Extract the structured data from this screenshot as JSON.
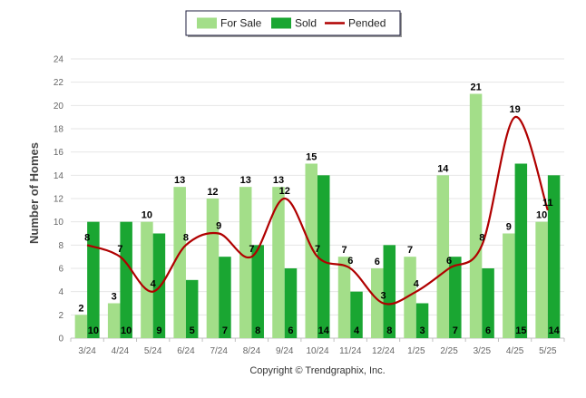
{
  "chart_data": {
    "type": "bar",
    "categories": [
      "3/24",
      "4/24",
      "5/24",
      "6/24",
      "7/24",
      "8/24",
      "9/24",
      "10/24",
      "11/24",
      "12/24",
      "1/25",
      "2/25",
      "3/25",
      "4/25",
      "5/25"
    ],
    "series": [
      {
        "name": "For Sale",
        "kind": "bar",
        "color": "#a3de89",
        "values": [
          2,
          3,
          10,
          13,
          12,
          13,
          13,
          15,
          7,
          6,
          7,
          14,
          21,
          9,
          10
        ]
      },
      {
        "name": "Sold",
        "kind": "bar",
        "color": "#1aa632",
        "values": [
          10,
          10,
          9,
          5,
          7,
          8,
          6,
          14,
          4,
          8,
          3,
          7,
          6,
          15,
          14
        ]
      },
      {
        "name": "Pended",
        "kind": "line",
        "color": "#b00000",
        "values": [
          8,
          7,
          4,
          8,
          9,
          7,
          12,
          7,
          6,
          3,
          4,
          6,
          8,
          19,
          11
        ]
      }
    ],
    "ylabel": "Number of Homes",
    "xlabel": "",
    "ylim": [
      0,
      24
    ],
    "yticks": [
      0,
      2,
      4,
      6,
      8,
      10,
      12,
      14,
      16,
      18,
      20,
      22,
      24
    ],
    "grid": true,
    "legend_position": "top-center"
  },
  "footer": {
    "copyright": "Copyright © Trendgraphix, Inc."
  }
}
